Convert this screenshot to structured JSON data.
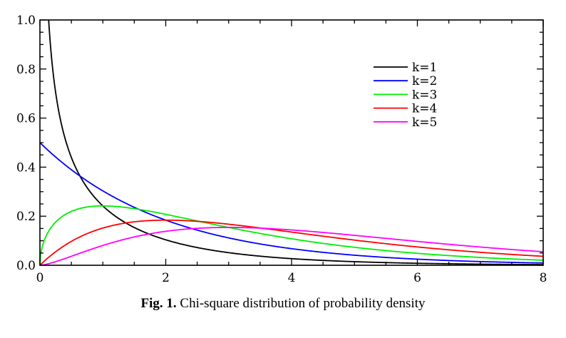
{
  "chart_data": {
    "type": "line",
    "title": "",
    "xlabel": "",
    "ylabel": "",
    "xlim": [
      0,
      8
    ],
    "ylim": [
      0,
      1.0
    ],
    "x_ticks": [
      0,
      2,
      4,
      6,
      8
    ],
    "y_ticks": [
      0.0,
      0.2,
      0.4,
      0.6,
      0.8,
      1.0
    ],
    "x_tick_labels": [
      "0",
      "2",
      "4",
      "6",
      "8"
    ],
    "y_tick_labels": [
      "0.0",
      "0.2",
      "0.4",
      "0.6",
      "0.8",
      "1.0"
    ],
    "grid": false,
    "legend_position": "top-right",
    "function": "chi-square probability density f(x; k)",
    "x": [
      0.0,
      0.1,
      0.25,
      0.5,
      0.75,
      1.0,
      1.5,
      2.0,
      2.5,
      3.0,
      3.5,
      4.0,
      5.0,
      6.0,
      7.0,
      8.0
    ],
    "series": [
      {
        "name": "k=1",
        "color": "#000000",
        "k": 1,
        "values": [
          null,
          1.2,
          0.7,
          0.439,
          0.3,
          0.242,
          0.154,
          0.104,
          0.072,
          0.051,
          0.037,
          0.027,
          0.015,
          0.008,
          0.005,
          0.003
        ]
      },
      {
        "name": "k=2",
        "color": "#0000ff",
        "k": 2,
        "values": [
          0.5,
          0.476,
          0.441,
          0.389,
          0.344,
          0.303,
          0.236,
          0.184,
          0.143,
          0.112,
          0.087,
          0.068,
          0.041,
          0.025,
          0.015,
          0.009
        ]
      },
      {
        "name": "k=3",
        "color": "#00ee00",
        "k": 3,
        "values": [
          0.0,
          0.12,
          0.176,
          0.22,
          0.237,
          0.242,
          0.231,
          0.208,
          0.18,
          0.154,
          0.13,
          0.108,
          0.073,
          0.048,
          0.031,
          0.02
        ]
      },
      {
        "name": "k=4",
        "color": "#ff0000",
        "k": 4,
        "values": [
          0.0,
          0.024,
          0.055,
          0.097,
          0.129,
          0.152,
          0.177,
          0.184,
          0.179,
          0.167,
          0.152,
          0.135,
          0.103,
          0.075,
          0.053,
          0.037
        ]
      },
      {
        "name": "k=5",
        "color": "#ff00ff",
        "k": 5,
        "values": [
          0.0,
          0.005,
          0.015,
          0.037,
          0.059,
          0.081,
          0.115,
          0.139,
          0.15,
          0.154,
          0.151,
          0.144,
          0.122,
          0.096,
          0.073,
          0.054
        ]
      }
    ]
  },
  "caption": {
    "label": "Fig. 1.",
    "text": " Chi-square distribution of probability density"
  }
}
